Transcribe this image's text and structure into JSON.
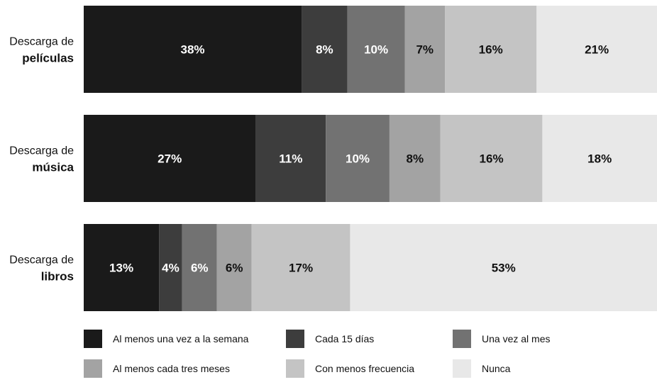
{
  "chart_data": {
    "type": "bar",
    "orientation": "horizontal",
    "stacked": true,
    "unit": "%",
    "categories": [
      {
        "line1": "Descarga de",
        "line2": "películas"
      },
      {
        "line1": "Descarga de",
        "line2": "música"
      },
      {
        "line1": "Descarga de",
        "line2": "libros"
      }
    ],
    "series": [
      {
        "name": "Al menos una vez a la semana",
        "color": "#1a1a1a",
        "label_color": "#ffffff",
        "values": [
          38,
          27,
          13
        ]
      },
      {
        "name": "Cada 15 días",
        "color": "#3d3d3d",
        "label_color": "#ffffff",
        "values": [
          8,
          11,
          4
        ]
      },
      {
        "name": "Una vez al mes",
        "color": "#727272",
        "label_color": "#ffffff",
        "values": [
          10,
          10,
          6
        ]
      },
      {
        "name": "Al menos cada tres meses",
        "color": "#a3a3a3",
        "label_color": "#111111",
        "values": [
          7,
          8,
          6
        ]
      },
      {
        "name": "Con menos frecuencia",
        "color": "#c4c4c4",
        "label_color": "#111111",
        "values": [
          16,
          16,
          17
        ]
      },
      {
        "name": "Nunca",
        "color": "#e8e8e8",
        "label_color": "#111111",
        "values": [
          21,
          18,
          53
        ]
      }
    ],
    "legend_position": "bottom",
    "grid": false
  }
}
